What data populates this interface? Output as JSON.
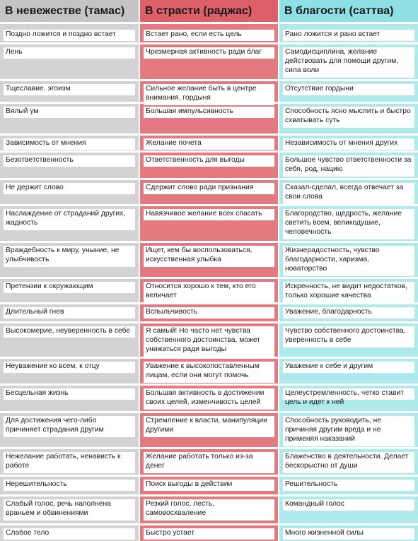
{
  "headers": {
    "tamas": "В невежестве (тамас)",
    "rajas": "В страсти (раджас)",
    "sattva": "В благости (саттва)"
  },
  "rows": [
    {
      "tamas": "Поздно ложится и поздно встает",
      "rajas": "Встает рано, если есть цель",
      "sattva": "Рано ложится и рано встает"
    },
    {
      "tamas": "Лень",
      "rajas": "Чрезмерная активность ради благ",
      "sattva": "Самодисциплина, желание действовать для помощи другим, сила воли"
    },
    {
      "tamas": "Тщеславие, эгоизм",
      "rajas": "Сильное желание быть в центре внимания, гордыня",
      "sattva": "Отсутствие гордыни"
    },
    {
      "tamas": "Вялый ум",
      "rajas": "Большая импульсивность",
      "sattva": "Способность ясно мыслить и быстро схватывать суть"
    },
    {
      "tamas": "Зависимость от мнения",
      "rajas": "Желание почета",
      "sattva": "Независимость от мнения других"
    },
    {
      "tamas": "Безответственность",
      "rajas": "Ответственность для выгоды",
      "sattva": "Большое чувство ответственности за себя, род, нацию"
    },
    {
      "tamas": "Не держит слово",
      "rajas": "Сдержит слово ради признания",
      "sattva": "Сказал-сделал, всегда отвечает за свои слова"
    },
    {
      "tamas": "Наслаждение от страданий других, жадность",
      "rajas": "Навязчивое желание всех спасать",
      "sattva": "Благородство, щедрость, желание светить всем, великодушие, человечность"
    },
    {
      "tamas": "Враждебность к миру, уныние, не улыбчивость",
      "rajas": "Ищет, кем бы воспользоваться, искусственная улыбка",
      "sattva": "Жизнерадостность, чувство благодарности, харизма, новаторство"
    },
    {
      "tamas": "Претензии к окружающим",
      "rajas": "Относится хорошо к тем, кто его величает",
      "sattva": "Искренность, не видит недостатков, только хорошие качества"
    },
    {
      "tamas": "Длительный гнев",
      "rajas": "Вспыльчивость",
      "sattva": "Уважение, благодарность"
    },
    {
      "tamas": "Высокомерие, неуверенность в себе",
      "rajas": "Я самый! Но часто нет чувства собственного достоинства, может унижаться ради выгоды",
      "sattva": "Чувство собственного достоинства, уверенность в себе"
    },
    {
      "tamas": "Неуважение ко всем, к отцу",
      "rajas": "Уважение к высокопоставленным лицам, если они могут помочь",
      "sattva": "Уважение к себе и другим"
    },
    {
      "tamas": "Бесцельная жизнь",
      "rajas": "Большая активность в достижении своих целей, изменчивость целей",
      "sattva": "Целеустремленность, четко ставит цель и идет к ней"
    },
    {
      "tamas": "Для достижения чего-либо причиняет страдания другим",
      "rajas": "Стремление к власти, манипуляции другими",
      "sattva": "Способность руководить, не причиняя другим вреда и не применяя наказаний"
    },
    {
      "tamas": "Нежелание работать, ненависть к работе",
      "rajas": "Желание работать только из-за денег",
      "sattva": "Блаженство в деятельности. Делает бескорыстно от души"
    },
    {
      "tamas": "Нерешительность",
      "rajas": "Поиск выгоды в действии",
      "sattva": "Решительность"
    },
    {
      "tamas": "Слабый голос, речь наполнена враньем и обвинениями",
      "rajas": "Резкий голос, лесть, самовосхваление",
      "sattva": "Командный голос"
    },
    {
      "tamas": "Слабое тело",
      "rajas": "Быстро устает",
      "sattva": "Много жизненной силы"
    }
  ]
}
